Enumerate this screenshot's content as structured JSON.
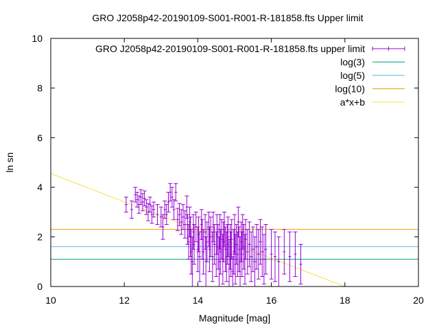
{
  "chart_data": {
    "type": "scatter",
    "title": "GRO J2058p42-20190109-S001-R001-R-181858.fts Upper limit",
    "xlabel": "Magnitude [mag]",
    "ylabel": "ln sn",
    "xlim": [
      10,
      20
    ],
    "ylim": [
      0,
      10
    ],
    "x_ticks": [
      "10",
      "12",
      "14",
      "16",
      "18",
      "20"
    ],
    "y_ticks": [
      "0",
      "2",
      "4",
      "6",
      "8",
      "10"
    ],
    "grid": false,
    "legend_position": "top-right",
    "series": [
      {
        "name": "GRO J2058p42-20190109-S001-R001-R-181858.fts upper limit",
        "kind": "points-with-errorbars",
        "color": "#9400d3",
        "points": [
          [
            12.05,
            3.3,
            0.3
          ],
          [
            12.2,
            3.1,
            0.35
          ],
          [
            12.3,
            3.7,
            0.3
          ],
          [
            12.35,
            3.5,
            0.3
          ],
          [
            12.4,
            3.3,
            0.35
          ],
          [
            12.45,
            3.6,
            0.3
          ],
          [
            12.5,
            3.4,
            0.35
          ],
          [
            12.55,
            3.55,
            0.3
          ],
          [
            12.6,
            3.2,
            0.3
          ],
          [
            12.65,
            3.0,
            0.35
          ],
          [
            12.7,
            3.3,
            0.3
          ],
          [
            12.75,
            2.9,
            0.35
          ],
          [
            12.8,
            3.1,
            0.3
          ],
          [
            12.9,
            2.9,
            0.4
          ],
          [
            13.0,
            2.8,
            0.4
          ],
          [
            13.05,
            2.4,
            0.5
          ],
          [
            13.1,
            3.1,
            0.35
          ],
          [
            13.15,
            2.9,
            0.4
          ],
          [
            13.2,
            3.4,
            0.4
          ],
          [
            13.25,
            3.8,
            0.35
          ],
          [
            13.3,
            3.6,
            0.4
          ],
          [
            13.35,
            3.1,
            0.4
          ],
          [
            13.4,
            3.8,
            0.35
          ],
          [
            13.45,
            2.7,
            0.45
          ],
          [
            13.5,
            2.9,
            0.45
          ],
          [
            13.55,
            2.6,
            0.5
          ],
          [
            13.6,
            2.8,
            0.5
          ],
          [
            13.65,
            2.5,
            0.55
          ],
          [
            13.7,
            3.2,
            0.45
          ],
          [
            13.72,
            2.3,
            0.6
          ],
          [
            13.75,
            1.8,
            0.7
          ],
          [
            13.78,
            2.6,
            0.6
          ],
          [
            13.8,
            2.0,
            0.8
          ],
          [
            13.82,
            1.4,
            0.9
          ],
          [
            13.85,
            1.0,
            1.0
          ],
          [
            13.88,
            2.2,
            0.7
          ],
          [
            13.9,
            1.7,
            0.8
          ],
          [
            13.95,
            2.4,
            0.6
          ],
          [
            14.0,
            1.5,
            0.9
          ],
          [
            14.02,
            2.1,
            0.7
          ],
          [
            14.05,
            1.2,
            1.0
          ],
          [
            14.1,
            2.5,
            0.6
          ],
          [
            14.12,
            1.9,
            0.8
          ],
          [
            14.15,
            1.4,
            0.9
          ],
          [
            14.2,
            2.2,
            0.7
          ],
          [
            14.22,
            1.0,
            1.0
          ],
          [
            14.25,
            1.8,
            0.8
          ],
          [
            14.3,
            2.3,
            0.7
          ],
          [
            14.32,
            1.5,
            0.9
          ],
          [
            14.35,
            2.0,
            0.8
          ],
          [
            14.4,
            1.2,
            1.0
          ],
          [
            14.42,
            2.4,
            0.6
          ],
          [
            14.45,
            1.7,
            0.8
          ],
          [
            14.5,
            1.3,
            0.9
          ],
          [
            14.52,
            2.1,
            0.8
          ],
          [
            14.55,
            1.6,
            0.9
          ],
          [
            14.58,
            1.0,
            1.0
          ],
          [
            14.6,
            2.2,
            0.7
          ],
          [
            14.62,
            1.4,
            0.9
          ],
          [
            14.65,
            1.9,
            0.8
          ],
          [
            14.68,
            1.1,
            1.0
          ],
          [
            14.7,
            1.8,
            0.8
          ],
          [
            14.72,
            2.3,
            0.7
          ],
          [
            14.75,
            1.5,
            0.9
          ],
          [
            14.78,
            1.2,
            1.0
          ],
          [
            14.8,
            1.7,
            0.8
          ],
          [
            14.82,
            2.0,
            0.8
          ],
          [
            14.85,
            0.9,
            1.0
          ],
          [
            14.88,
            1.6,
            0.9
          ],
          [
            14.9,
            1.3,
            0.9
          ],
          [
            14.92,
            1.9,
            0.8
          ],
          [
            14.95,
            0.6,
            0.6
          ],
          [
            14.98,
            1.4,
            0.9
          ],
          [
            15.0,
            2.1,
            0.8
          ],
          [
            15.02,
            1.1,
            1.0
          ],
          [
            15.05,
            1.7,
            0.8
          ],
          [
            15.08,
            1.3,
            0.9
          ],
          [
            15.1,
            2.6,
            0.6
          ],
          [
            15.12,
            1.5,
            0.9
          ],
          [
            15.15,
            1.0,
            1.0
          ],
          [
            15.18,
            1.8,
            0.8
          ],
          [
            15.2,
            1.3,
            0.9
          ],
          [
            15.22,
            2.2,
            0.7
          ],
          [
            15.25,
            1.6,
            0.9
          ],
          [
            15.28,
            1.1,
            1.0
          ],
          [
            15.3,
            1.9,
            0.8
          ],
          [
            15.35,
            1.4,
            0.9
          ],
          [
            15.4,
            1.7,
            0.9
          ],
          [
            15.45,
            1.2,
            1.0
          ],
          [
            15.5,
            1.5,
            0.9
          ],
          [
            15.55,
            1.0,
            1.0
          ],
          [
            15.6,
            1.6,
            0.9
          ],
          [
            15.65,
            1.3,
            1.0
          ],
          [
            15.7,
            1.8,
            0.9
          ],
          [
            15.75,
            1.4,
            1.0
          ],
          [
            15.8,
            1.1,
            1.0
          ],
          [
            15.85,
            1.5,
            1.0
          ],
          [
            16.0,
            1.3,
            1.0
          ],
          [
            16.1,
            1.2,
            1.0
          ],
          [
            16.2,
            1.0,
            1.0
          ],
          [
            16.35,
            1.4,
            0.9
          ],
          [
            16.5,
            1.2,
            1.0
          ],
          [
            16.65,
            1.3,
            0.9
          ],
          [
            16.8,
            0.9,
            0.8
          ]
        ]
      },
      {
        "name": "log(3)",
        "kind": "hline",
        "value": 1.0986,
        "color": "#009e73"
      },
      {
        "name": "log(5)",
        "kind": "hline",
        "value": 1.6094,
        "color": "#56b4e9"
      },
      {
        "name": "log(10)",
        "kind": "hline",
        "value": 2.3026,
        "color": "#e69f00"
      },
      {
        "name": "a*x+b",
        "kind": "fit-line",
        "x": [
          10,
          18
        ],
        "y": [
          4.55,
          0
        ],
        "color": "#f0e442"
      }
    ]
  }
}
